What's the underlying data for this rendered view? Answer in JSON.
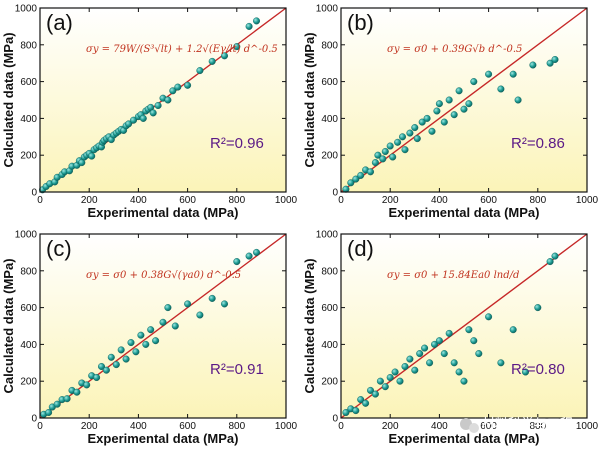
{
  "watermark": "材料科学与工程",
  "colors": {
    "fill_top": "#ffffff",
    "fill_bottom": "#fbf4b8",
    "fit_line": "#c62828",
    "dot": "#1f9e96",
    "r2": "#5b1a86",
    "equation": "#c0321e"
  },
  "chart_data": [
    {
      "type": "scatter",
      "panel_label": "(a)",
      "xlabel": "Experimental data (MPa)",
      "ylabel": "Calculated data (MPa)",
      "xlim": [
        0,
        1000
      ],
      "ylim": [
        0,
        1000
      ],
      "xticks": [
        "0",
        "200",
        "400",
        "600",
        "800",
        "1000"
      ],
      "yticks": [
        "0",
        "200",
        "400",
        "600",
        "800",
        "1000"
      ],
      "equation": "σy = 79W/(S³√lt) + 1.2√(Eγ/lt) d^-0.5",
      "r2_label": "R²=0.96",
      "r2": 0.96,
      "fit_line": [
        [
          0,
          0
        ],
        [
          1000,
          1000
        ]
      ],
      "points": [
        [
          10,
          12
        ],
        [
          25,
          30
        ],
        [
          40,
          45
        ],
        [
          60,
          55
        ],
        [
          70,
          80
        ],
        [
          90,
          95
        ],
        [
          100,
          110
        ],
        [
          120,
          115
        ],
        [
          130,
          140
        ],
        [
          150,
          145
        ],
        [
          160,
          170
        ],
        [
          170,
          160
        ],
        [
          180,
          190
        ],
        [
          190,
          200
        ],
        [
          200,
          210
        ],
        [
          210,
          195
        ],
        [
          220,
          230
        ],
        [
          230,
          240
        ],
        [
          240,
          250
        ],
        [
          250,
          245
        ],
        [
          255,
          270
        ],
        [
          260,
          280
        ],
        [
          270,
          290
        ],
        [
          280,
          300
        ],
        [
          290,
          285
        ],
        [
          300,
          310
        ],
        [
          310,
          320
        ],
        [
          320,
          330
        ],
        [
          330,
          340
        ],
        [
          340,
          335
        ],
        [
          350,
          360
        ],
        [
          360,
          370
        ],
        [
          380,
          390
        ],
        [
          400,
          410
        ],
        [
          410,
          420
        ],
        [
          420,
          400
        ],
        [
          430,
          440
        ],
        [
          440,
          450
        ],
        [
          450,
          460
        ],
        [
          460,
          430
        ],
        [
          480,
          470
        ],
        [
          500,
          510
        ],
        [
          520,
          500
        ],
        [
          540,
          550
        ],
        [
          560,
          570
        ],
        [
          600,
          580
        ],
        [
          650,
          660
        ],
        [
          700,
          710
        ],
        [
          750,
          740
        ],
        [
          800,
          790
        ],
        [
          850,
          900
        ],
        [
          880,
          930
        ]
      ]
    },
    {
      "type": "scatter",
      "panel_label": "(b)",
      "xlabel": "Experimental data (MPa)",
      "ylabel": "Calculated data (MPa)",
      "xlim": [
        0,
        1000
      ],
      "ylim": [
        0,
        1000
      ],
      "xticks": [
        "0",
        "200",
        "400",
        "600",
        "800",
        "1000"
      ],
      "yticks": [
        "0",
        "200",
        "400",
        "600",
        "800",
        "1000"
      ],
      "equation": "σy = σ0 + 0.39G√b d^-0.5",
      "r2_label": "R²=0.86",
      "r2": 0.86,
      "fit_line": [
        [
          0,
          0
        ],
        [
          1000,
          1000
        ]
      ],
      "points": [
        [
          20,
          15
        ],
        [
          40,
          50
        ],
        [
          60,
          70
        ],
        [
          80,
          90
        ],
        [
          100,
          120
        ],
        [
          120,
          110
        ],
        [
          140,
          160
        ],
        [
          150,
          200
        ],
        [
          170,
          180
        ],
        [
          180,
          220
        ],
        [
          200,
          250
        ],
        [
          210,
          190
        ],
        [
          230,
          270
        ],
        [
          250,
          300
        ],
        [
          260,
          230
        ],
        [
          280,
          320
        ],
        [
          300,
          350
        ],
        [
          310,
          290
        ],
        [
          330,
          380
        ],
        [
          350,
          400
        ],
        [
          370,
          330
        ],
        [
          390,
          440
        ],
        [
          400,
          480
        ],
        [
          420,
          380
        ],
        [
          440,
          500
        ],
        [
          460,
          420
        ],
        [
          480,
          550
        ],
        [
          500,
          450
        ],
        [
          520,
          480
        ],
        [
          540,
          600
        ],
        [
          600,
          640
        ],
        [
          650,
          560
        ],
        [
          700,
          640
        ],
        [
          720,
          500
        ],
        [
          780,
          690
        ],
        [
          850,
          700
        ],
        [
          870,
          720
        ]
      ]
    },
    {
      "type": "scatter",
      "panel_label": "(c)",
      "xlabel": "Experimental data (MPa)",
      "ylabel": "Calculated data (MPa)",
      "xlim": [
        0,
        1000
      ],
      "ylim": [
        0,
        1000
      ],
      "xticks": [
        "0",
        "200",
        "400",
        "600",
        "800",
        "1000"
      ],
      "yticks": [
        "0",
        "200",
        "400",
        "600",
        "800",
        "1000"
      ],
      "equation": "σy = σ0 + 0.38G√(γa0) d^-0.5",
      "r2_label": "R²=0.91",
      "r2": 0.91,
      "fit_line": [
        [
          0,
          0
        ],
        [
          1000,
          1000
        ]
      ],
      "points": [
        [
          15,
          20
        ],
        [
          35,
          30
        ],
        [
          50,
          60
        ],
        [
          70,
          75
        ],
        [
          90,
          100
        ],
        [
          110,
          105
        ],
        [
          130,
          150
        ],
        [
          150,
          140
        ],
        [
          170,
          190
        ],
        [
          190,
          180
        ],
        [
          210,
          230
        ],
        [
          230,
          220
        ],
        [
          250,
          280
        ],
        [
          270,
          260
        ],
        [
          290,
          330
        ],
        [
          310,
          290
        ],
        [
          330,
          370
        ],
        [
          350,
          320
        ],
        [
          370,
          410
        ],
        [
          390,
          360
        ],
        [
          410,
          450
        ],
        [
          430,
          400
        ],
        [
          450,
          480
        ],
        [
          470,
          420
        ],
        [
          500,
          520
        ],
        [
          520,
          600
        ],
        [
          550,
          500
        ],
        [
          600,
          620
        ],
        [
          650,
          560
        ],
        [
          700,
          650
        ],
        [
          750,
          620
        ],
        [
          800,
          850
        ],
        [
          850,
          880
        ],
        [
          880,
          900
        ]
      ]
    },
    {
      "type": "scatter",
      "panel_label": "(d)",
      "xlabel": "Experimental data (MPa)",
      "ylabel": "Calculated data (MPa)",
      "xlim": [
        0,
        1000
      ],
      "ylim": [
        0,
        1000
      ],
      "xticks": [
        "0",
        "200",
        "400",
        "600",
        "800",
        "1000"
      ],
      "yticks": [
        "0",
        "200",
        "400",
        "600",
        "800",
        "1000"
      ],
      "equation": "σy = σ0 + 15.84Ea0 lnd/d",
      "r2_label": "R²=0.80",
      "r2": 0.8,
      "fit_line": [
        [
          0,
          0
        ],
        [
          1000,
          1000
        ]
      ],
      "points": [
        [
          20,
          30
        ],
        [
          40,
          50
        ],
        [
          60,
          40
        ],
        [
          80,
          100
        ],
        [
          100,
          80
        ],
        [
          120,
          150
        ],
        [
          140,
          130
        ],
        [
          160,
          200
        ],
        [
          180,
          170
        ],
        [
          200,
          220
        ],
        [
          220,
          250
        ],
        [
          240,
          200
        ],
        [
          260,
          280
        ],
        [
          280,
          320
        ],
        [
          300,
          260
        ],
        [
          320,
          350
        ],
        [
          340,
          380
        ],
        [
          360,
          300
        ],
        [
          380,
          400
        ],
        [
          400,
          420
        ],
        [
          420,
          350
        ],
        [
          440,
          460
        ],
        [
          460,
          300
        ],
        [
          480,
          250
        ],
        [
          500,
          200
        ],
        [
          520,
          480
        ],
        [
          540,
          420
        ],
        [
          560,
          350
        ],
        [
          600,
          550
        ],
        [
          650,
          300
        ],
        [
          700,
          480
        ],
        [
          750,
          250
        ],
        [
          800,
          600
        ],
        [
          850,
          850
        ],
        [
          870,
          880
        ]
      ]
    }
  ]
}
